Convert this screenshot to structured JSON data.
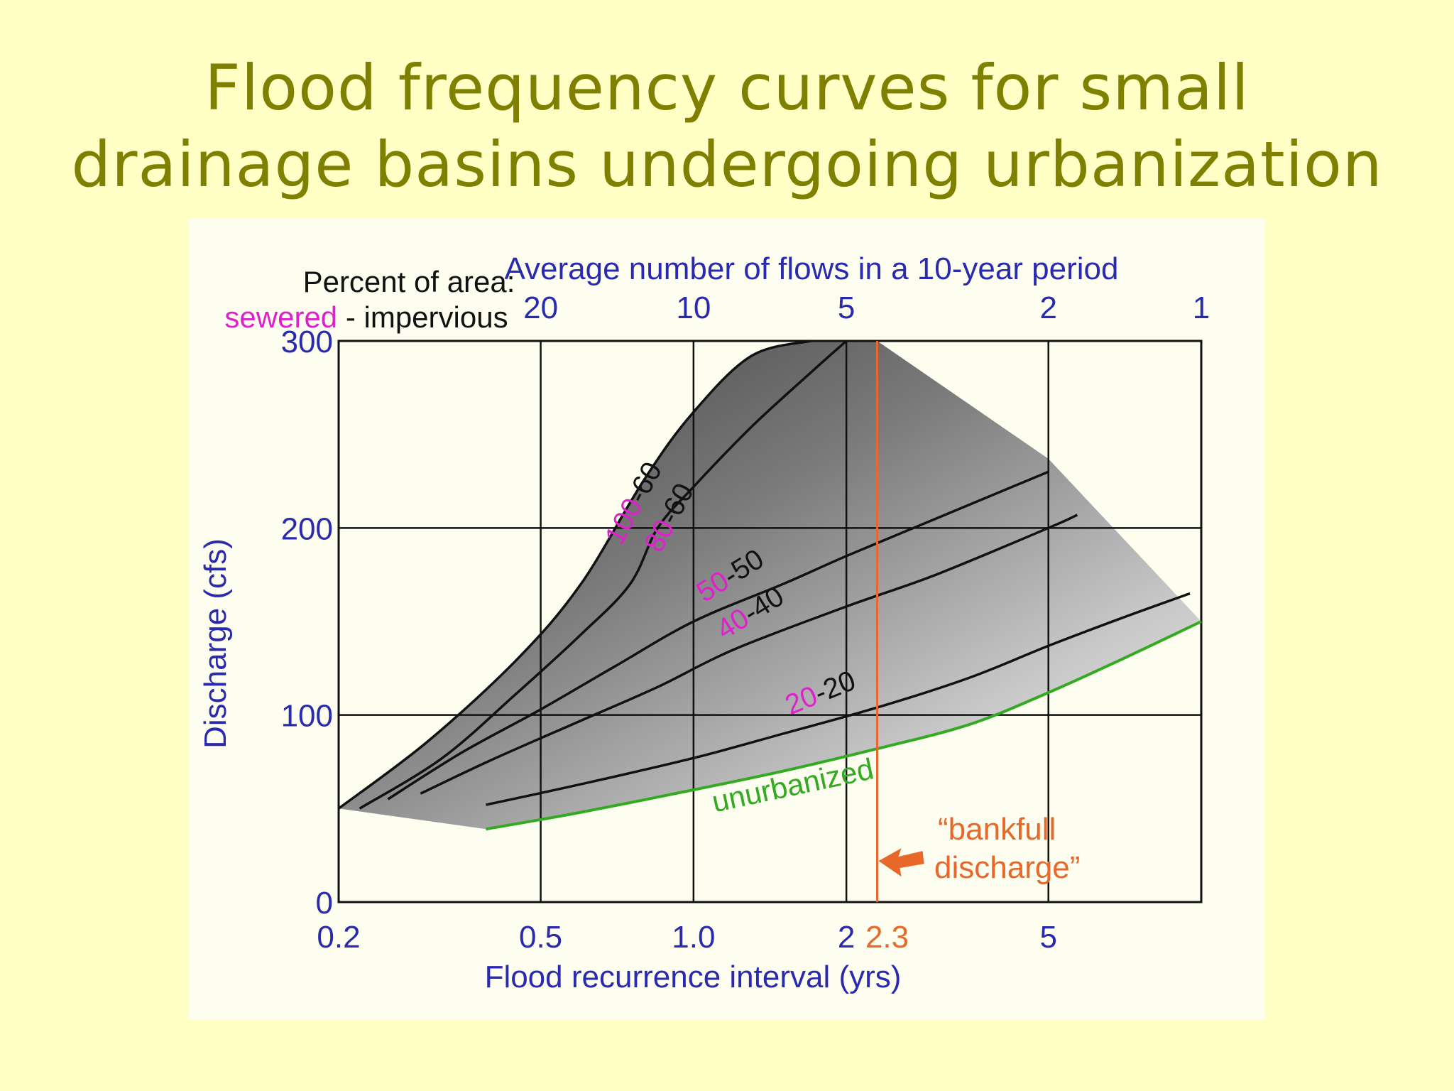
{
  "slide": {
    "title_line1": "Flood frequency curves for small",
    "title_line2": "drainage basins undergoing urbanization"
  },
  "chart_data": {
    "type": "line",
    "xlabel": "Flood recurrence interval (yrs)",
    "ylabel": "Discharge (cfs)",
    "top_axis_label": "Average number of flows in a 10-year period",
    "x_scale": "log",
    "xlim": [
      0.2,
      10
    ],
    "ylim": [
      0,
      300
    ],
    "x_ticks": [
      "0.2",
      "0.5",
      "1.0",
      "2",
      "5"
    ],
    "x_tick_values": [
      0.2,
      0.5,
      1.0,
      2,
      5
    ],
    "y_ticks": [
      "0",
      "100",
      "200",
      "300"
    ],
    "y_tick_values": [
      0,
      100,
      200,
      300
    ],
    "top_ticks": [
      "20",
      "10",
      "5",
      "2",
      "1"
    ],
    "top_tick_values": [
      0.5,
      1.0,
      2,
      5,
      10
    ],
    "grid": true,
    "legend_title": "Percent of area:",
    "legend_sewered": "sewered",
    "legend_separator": " - ",
    "legend_impervious": "impervious",
    "bankfull": {
      "x": 2.3,
      "x_label": "2.3",
      "label_line1": "“bankfull",
      "label_line2": "discharge”",
      "color": "#e8682a"
    },
    "series": [
      {
        "name": "100-60",
        "sewered": "100",
        "impervious": "60",
        "x": [
          0.2,
          0.3,
          0.45,
          0.6,
          0.8,
          1.0,
          1.3,
          1.7
        ],
        "y": [
          50,
          86,
          130,
          170,
          226,
          262,
          292,
          300
        ]
      },
      {
        "name": "80-60",
        "sewered": "80",
        "impervious": "60",
        "x": [
          0.22,
          0.32,
          0.45,
          0.6,
          0.75,
          0.85,
          1.0,
          1.3,
          1.7,
          2.0
        ],
        "y": [
          50,
          77,
          112,
          143,
          170,
          200,
          222,
          254,
          283,
          300
        ]
      },
      {
        "name": "50-50",
        "sewered": "50",
        "impervious": "50",
        "x": [
          0.25,
          0.35,
          0.5,
          0.7,
          1.0,
          1.5,
          2.0,
          3.0,
          5.0
        ],
        "y": [
          55,
          80,
          103,
          126,
          150,
          170,
          185,
          205,
          230
        ]
      },
      {
        "name": "40-40",
        "sewered": "40",
        "impervious": "40",
        "x": [
          0.29,
          0.4,
          0.6,
          0.85,
          1.2,
          2.0,
          3.0,
          5.0,
          5.7
        ],
        "y": [
          58,
          76,
          97,
          115,
          135,
          158,
          175,
          200,
          207
        ]
      },
      {
        "name": "20-20",
        "sewered": "20",
        "impervious": "20",
        "x": [
          0.39,
          0.6,
          1.0,
          1.5,
          2.3,
          3.5,
          5.0,
          7.0,
          9.5
        ],
        "y": [
          52,
          63,
          77,
          90,
          104,
          120,
          137,
          152,
          165
        ]
      },
      {
        "name": "unurbanized",
        "x": [
          0.39,
          0.6,
          1.0,
          1.5,
          2.3,
          3.5,
          5.0,
          7.0,
          10.0
        ],
        "y": [
          39,
          48,
          60,
          70,
          82,
          95,
          112,
          130,
          150
        ],
        "color": "#33aa22"
      }
    ],
    "colors": {
      "axis_text": "#2a2ab0",
      "sewered": "#dd22cc",
      "grid": "#111111",
      "unurbanized": "#33aa22",
      "bankfull": "#e8682a"
    }
  }
}
